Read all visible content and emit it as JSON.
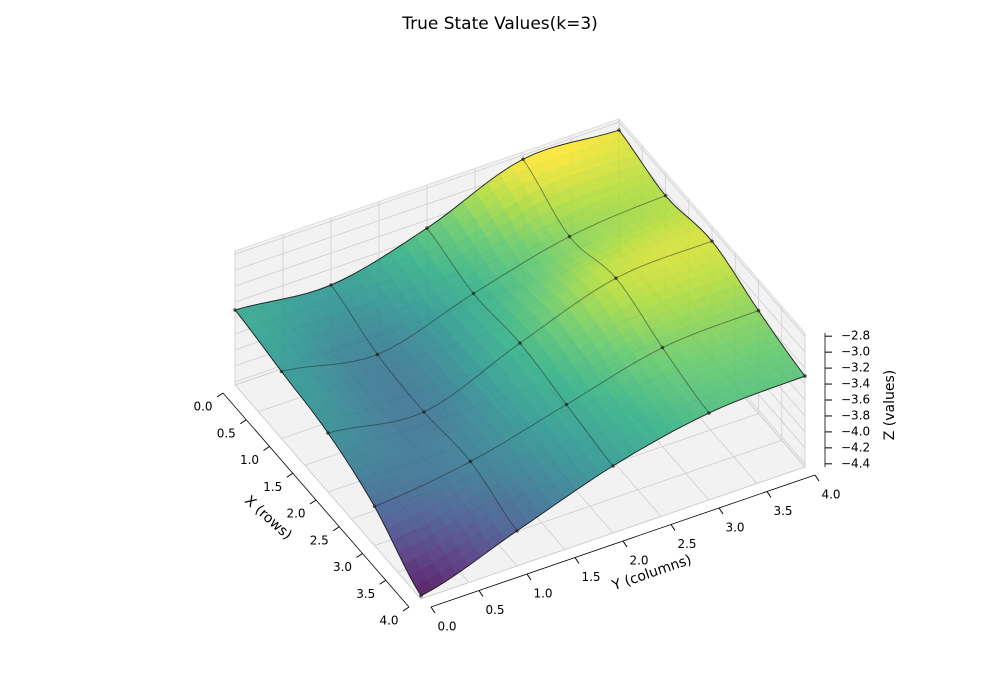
{
  "chart_data": {
    "type": "surface",
    "title": "True State Values(k=3)",
    "xlabel": "X (rows)",
    "ylabel": "Y (columns)",
    "zlabel": "Z (values)",
    "colormap": "viridis",
    "grid": true,
    "x": [
      0,
      1,
      2,
      3,
      4
    ],
    "y": [
      0,
      1,
      2,
      3,
      4
    ],
    "z": [
      [
        -3.5,
        -3.6,
        -3.3,
        -2.85,
        -2.9
      ],
      [
        -3.6,
        -3.8,
        -3.45,
        -3.15,
        -3.05
      ],
      [
        -3.7,
        -3.85,
        -3.4,
        -3.0,
        -2.95
      ],
      [
        -3.95,
        -3.8,
        -3.5,
        -3.2,
        -3.15
      ],
      [
        -4.4,
        -4.0,
        -3.6,
        -3.35,
        -3.3
      ]
    ],
    "xlim": [
      0,
      4
    ],
    "ylim": [
      0,
      4
    ],
    "zlim": [
      -4.44,
      -2.76
    ],
    "xticks": [
      {
        "value": 0,
        "label": "0.0"
      },
      {
        "value": 0.5,
        "label": "0.5"
      },
      {
        "value": 1,
        "label": "1.0"
      },
      {
        "value": 1.5,
        "label": "1.5"
      },
      {
        "value": 2,
        "label": "2.0"
      },
      {
        "value": 2.5,
        "label": "2.5"
      },
      {
        "value": 3,
        "label": "3.0"
      },
      {
        "value": 3.5,
        "label": "3.5"
      },
      {
        "value": 4,
        "label": "4.0"
      }
    ],
    "yticks": [
      {
        "value": 0,
        "label": "0.0"
      },
      {
        "value": 0.5,
        "label": "0.5"
      },
      {
        "value": 1,
        "label": "1.0"
      },
      {
        "value": 1.5,
        "label": "1.5"
      },
      {
        "value": 2,
        "label": "2.0"
      },
      {
        "value": 2.5,
        "label": "2.5"
      },
      {
        "value": 3,
        "label": "3.0"
      },
      {
        "value": 3.5,
        "label": "3.5"
      },
      {
        "value": 4,
        "label": "4.0"
      }
    ],
    "zticks": [
      {
        "value": -4.4,
        "label": "−4.4"
      },
      {
        "value": -4.2,
        "label": "−4.2"
      },
      {
        "value": -4.0,
        "label": "−4.0"
      },
      {
        "value": -3.8,
        "label": "−3.8"
      },
      {
        "value": -3.6,
        "label": "−3.6"
      },
      {
        "value": -3.4,
        "label": "−3.4"
      },
      {
        "value": -3.2,
        "label": "−3.2"
      },
      {
        "value": -3.0,
        "label": "−3.0"
      },
      {
        "value": -2.8,
        "label": "−2.8"
      }
    ]
  }
}
